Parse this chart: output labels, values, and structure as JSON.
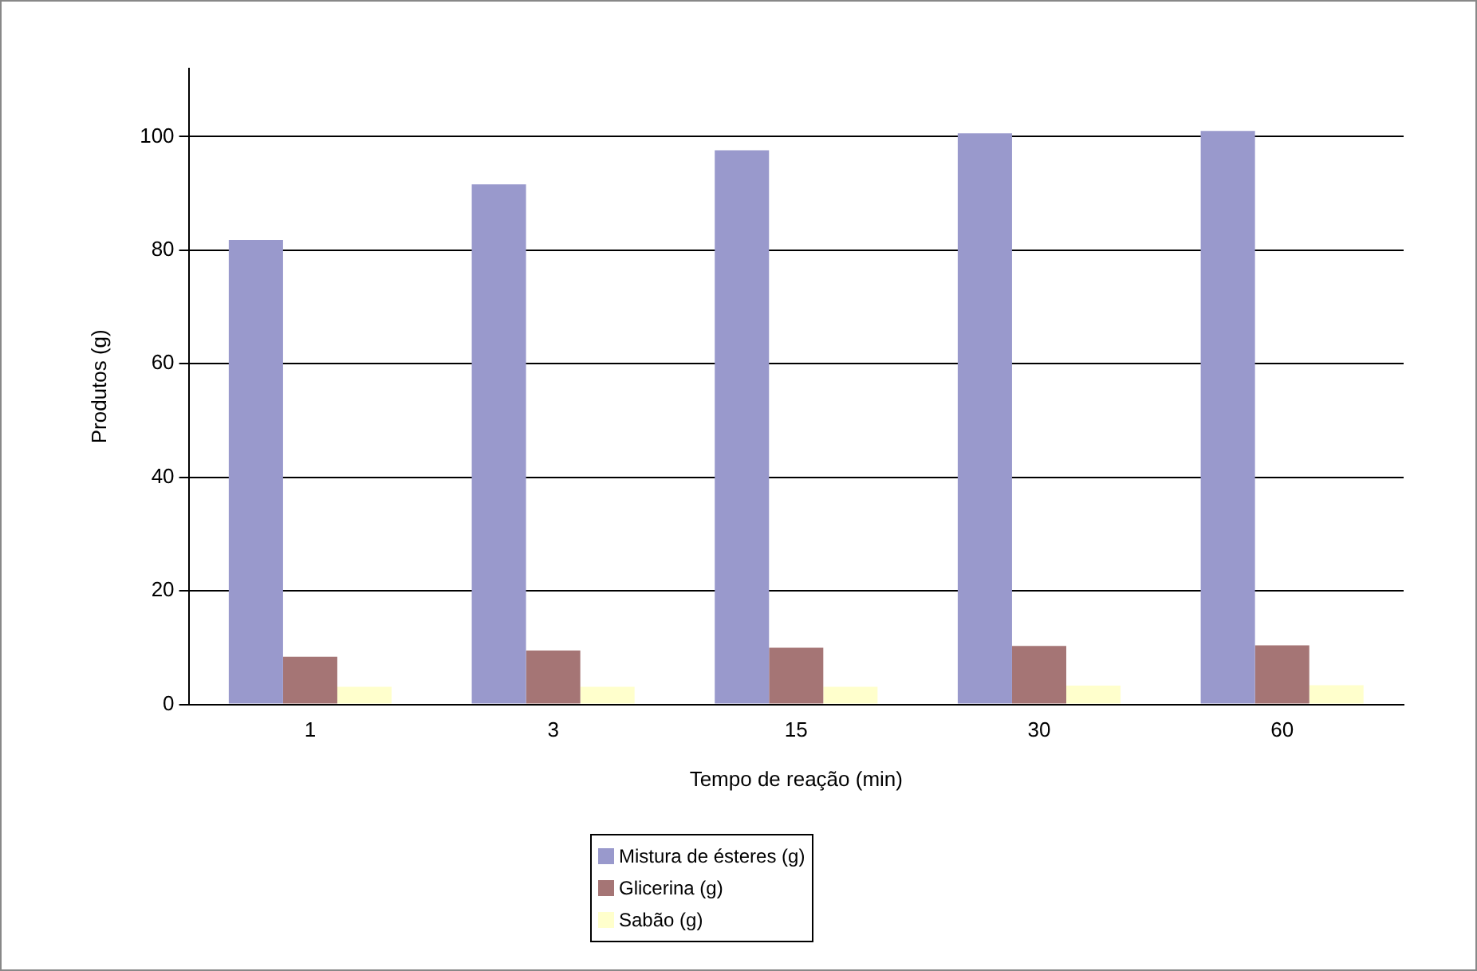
{
  "chart_data": {
    "type": "bar",
    "xlabel": "Tempo de reação (min)",
    "ylabel": "Produtos (g)",
    "categories": [
      "1",
      "3",
      "15",
      "30",
      "60"
    ],
    "series": [
      {
        "name": "Mistura de ésteres (g)",
        "color": "#9999cc",
        "values": [
          81.8,
          91.6,
          97.6,
          100.6,
          101.0
        ]
      },
      {
        "name": "Glicerina (g)",
        "color": "#a57575",
        "values": [
          8.4,
          9.5,
          10.0,
          10.3,
          10.4
        ]
      },
      {
        "name": "Sabão (g)",
        "color": "#ffffcc",
        "values": [
          3.1,
          3.1,
          3.1,
          3.3,
          3.4
        ]
      }
    ],
    "ylim": [
      0,
      112
    ],
    "yticks": [
      0,
      20,
      40,
      60,
      80,
      100
    ],
    "grid": "y",
    "legend": "bottom"
  }
}
